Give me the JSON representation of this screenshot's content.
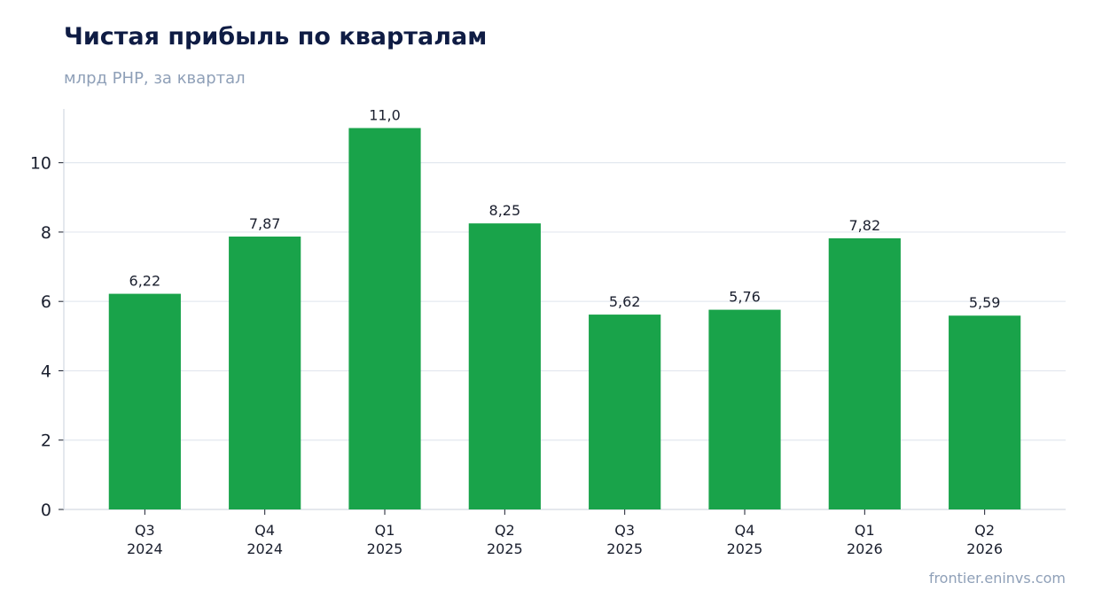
{
  "title": "Чистая прибыль по кварталам",
  "subtitle": "млрд PHP, за квартал",
  "source": "frontier.eninvs.com",
  "colors": {
    "bar": "#19a34a",
    "title": "#0f1c44",
    "muted": "#8fa0b8",
    "grid": "#e3e8ef",
    "axis": "#d3d9e2"
  },
  "chart_data": {
    "type": "bar",
    "categories": [
      [
        "Q3",
        "2024"
      ],
      [
        "Q4",
        "2024"
      ],
      [
        "Q1",
        "2025"
      ],
      [
        "Q2",
        "2025"
      ],
      [
        "Q3",
        "2025"
      ],
      [
        "Q4",
        "2025"
      ],
      [
        "Q1",
        "2026"
      ],
      [
        "Q2",
        "2026"
      ]
    ],
    "values": [
      6.22,
      7.87,
      11.0,
      8.25,
      5.62,
      5.76,
      7.82,
      5.59
    ],
    "data_labels": [
      "6,22",
      "7,87",
      "11,0",
      "8,25",
      "5,62",
      "5,76",
      "7,82",
      "5,59"
    ],
    "yticks": [
      0,
      2,
      4,
      6,
      8,
      10
    ],
    "ylim": [
      0,
      11.55
    ],
    "grid": true,
    "legend": false
  }
}
